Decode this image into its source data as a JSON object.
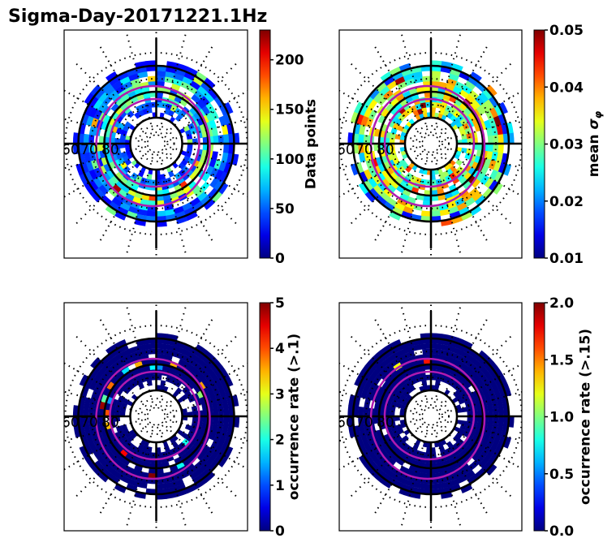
{
  "title": "Sigma-Day-20171221.1Hz",
  "chart_data": [
    {
      "type": "heatmap",
      "projection": "polar (magnetic latitude / MLT)",
      "title": "",
      "colorbar_label": "Data points",
      "colormap": "jet",
      "clim": [
        0,
        230
      ],
      "colorbar_ticks": [
        "0",
        "50",
        "100",
        "150",
        "200"
      ],
      "colorbar_tick_values": [
        0,
        50,
        100,
        150,
        200
      ],
      "latitude_labels": [
        "60",
        "70",
        "80"
      ],
      "coverage": "ring between ~60° and ~80° MLAT, mostly 0-150, few cells up to ~200",
      "typical_value_range": [
        10,
        200
      ],
      "seed": 11,
      "fill_fraction": 0.86
    },
    {
      "type": "heatmap",
      "projection": "polar (magnetic latitude / MLT)",
      "title": "",
      "colorbar_label": "mean σ_φ",
      "colormap": "jet",
      "clim": [
        0.01,
        0.05
      ],
      "colorbar_ticks": [
        "0.01",
        "0.02",
        "0.03",
        "0.04",
        "0.05"
      ],
      "colorbar_tick_values": [
        0.01,
        0.02,
        0.03,
        0.04,
        0.05
      ],
      "latitude_labels": [
        "60",
        "70",
        "80"
      ],
      "coverage": "ring between ~60° and ~80° MLAT, mostly 0.02-0.04, a few cells saturate at 0.05",
      "typical_value_range": [
        0.015,
        0.05
      ],
      "seed": 23,
      "fill_fraction": 0.86
    },
    {
      "type": "heatmap",
      "projection": "polar (magnetic latitude / MLT)",
      "title": "",
      "colorbar_label": "occurrence rate (>.1)",
      "colormap": "jet",
      "clim": [
        0,
        5
      ],
      "colorbar_ticks": [
        "0",
        "1",
        "2",
        "3",
        "4",
        "5"
      ],
      "colorbar_tick_values": [
        0,
        1,
        2,
        3,
        4,
        5
      ],
      "latitude_labels": [
        "60",
        "70",
        "80"
      ],
      "coverage": "almost all cells ~0, scattered cells 1-5 near the auroral oval",
      "typical_value_range": [
        0,
        5
      ],
      "seed": 37,
      "fill_fraction": 0.93
    },
    {
      "type": "heatmap",
      "projection": "polar (magnetic latitude / MLT)",
      "title": "",
      "colorbar_label": "occurrence rate (>.15)",
      "colormap": "jet",
      "clim": [
        0,
        2
      ],
      "colorbar_ticks": [
        "0.0",
        "0.5",
        "1.0",
        "1.5",
        "2.0"
      ],
      "colorbar_tick_values": [
        0,
        0.5,
        1.0,
        1.5,
        2.0
      ],
      "latitude_labels": [
        "60",
        "70",
        "80"
      ],
      "coverage": "almost all cells ~0, very few cells 0.8-2",
      "typical_value_range": [
        0,
        2
      ],
      "seed": 53,
      "fill_fraction": 0.95
    }
  ],
  "colors": {
    "oval_line": "#b01ab0",
    "grid_line": "#000000"
  }
}
